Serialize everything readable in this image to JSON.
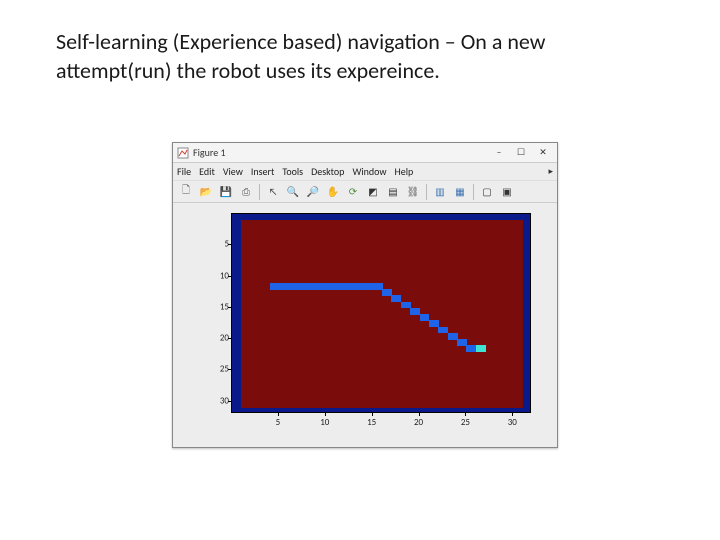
{
  "title": "Self-learning (Experience based) navigation – On a new attempt(run) the robot uses its expereince.",
  "window": {
    "title": "Figure 1",
    "minimize": "–",
    "maximize": "☐",
    "close": "✕"
  },
  "menu": {
    "items": [
      "File",
      "Edit",
      "View",
      "Insert",
      "Tools",
      "Desktop",
      "Window",
      "Help"
    ],
    "arrow": "▸"
  },
  "toolbar": {
    "icons": [
      {
        "name": "new-icon",
        "glyph": "🗋",
        "color": "#555"
      },
      {
        "name": "open-icon",
        "glyph": "📂",
        "color": "#d9a13a"
      },
      {
        "name": "save-icon",
        "glyph": "💾",
        "color": "#5468c0"
      },
      {
        "name": "print-icon",
        "glyph": "⎙",
        "color": "#555"
      },
      {
        "sep": true
      },
      {
        "name": "pointer-icon",
        "glyph": "↖",
        "color": "#333"
      },
      {
        "name": "zoom-in-icon",
        "glyph": "🔍",
        "color": "#6aa0c8"
      },
      {
        "name": "zoom-out-icon",
        "glyph": "🔎",
        "color": "#6aa0c8"
      },
      {
        "name": "pan-icon",
        "glyph": "✋",
        "color": "#c89040"
      },
      {
        "name": "rotate-icon",
        "glyph": "⟳",
        "color": "#4e8a3a"
      },
      {
        "name": "datacursor-icon",
        "glyph": "◩",
        "color": "#333"
      },
      {
        "name": "brush-icon",
        "glyph": "▤",
        "color": "#333"
      },
      {
        "name": "link-icon",
        "glyph": "⛓",
        "color": "#555"
      },
      {
        "sep": true
      },
      {
        "name": "colorbar-icon",
        "glyph": "▥",
        "color": "#3a70b0"
      },
      {
        "name": "legend-icon",
        "glyph": "▦",
        "color": "#3a70b0"
      },
      {
        "sep": true
      },
      {
        "name": "axes-icon",
        "glyph": "▢",
        "color": "#333"
      },
      {
        "name": "plottools-icon",
        "glyph": "▣",
        "color": "#333"
      }
    ]
  },
  "plot": {
    "grid_cols": 32,
    "grid_rows": 32,
    "colors": {
      "border": "#0b1a8a",
      "empty": "#7a0c0c",
      "path": "#1e63e8",
      "robot": "#3fe3d3"
    },
    "xticks": [
      5,
      10,
      15,
      20,
      25,
      30
    ],
    "yticks": [
      5,
      10,
      15,
      20,
      25,
      30
    ],
    "border_thickness": 1,
    "path_cells": [
      [
        4,
        11
      ],
      [
        5,
        11
      ],
      [
        6,
        11
      ],
      [
        7,
        11
      ],
      [
        8,
        11
      ],
      [
        9,
        11
      ],
      [
        10,
        11
      ],
      [
        11,
        11
      ],
      [
        12,
        11
      ],
      [
        13,
        11
      ],
      [
        14,
        11
      ],
      [
        15,
        11
      ],
      [
        16,
        12
      ],
      [
        17,
        13
      ],
      [
        18,
        14
      ],
      [
        19,
        15
      ],
      [
        20,
        16
      ],
      [
        21,
        17
      ],
      [
        22,
        18
      ],
      [
        23,
        19
      ],
      [
        24,
        20
      ],
      [
        25,
        21
      ]
    ],
    "robot_cell": [
      26,
      21
    ]
  }
}
